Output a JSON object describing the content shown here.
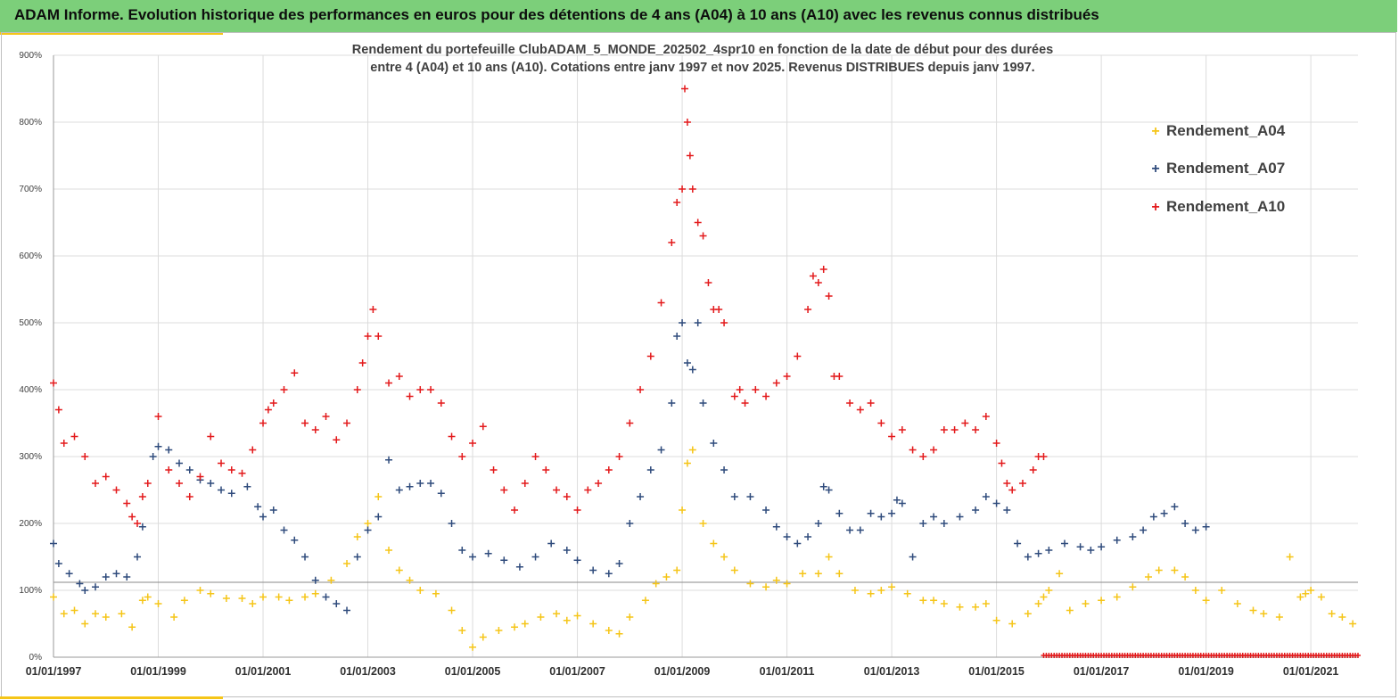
{
  "header": {
    "title": "ADAM Informe. Evolution historique des performances en euros pour des détentions de 4 ans (A04) à 10 ans (A10) avec les revenus connus distribués"
  },
  "chart_data": {
    "type": "scatter",
    "title_line1": "Rendement du portefeuille ClubADAM_5_MONDE_202502_4spr10  en fonction de la date de début pour des durées",
    "title_line2": "entre 4 (A04)  et 10 ans (A10). Cotations  entre janv 1997 et nov  2025. Revenus DISTRIBUES depuis janv 1997.",
    "xlabel": "",
    "ylabel": "",
    "xlim": [
      1997.0,
      2021.9
    ],
    "ylim": [
      0,
      900
    ],
    "yticks": [
      "0%",
      "100%",
      "200%",
      "300%",
      "400%",
      "500%",
      "600%",
      "700%",
      "800%",
      "900%"
    ],
    "xticks": [
      {
        "year": 1997,
        "label": "01/01/1997"
      },
      {
        "year": 1999,
        "label": "01/01/1999"
      },
      {
        "year": 2001,
        "label": "01/01/2001"
      },
      {
        "year": 2003,
        "label": "01/01/2003"
      },
      {
        "year": 2005,
        "label": "01/01/2005"
      },
      {
        "year": 2007,
        "label": "01/01/2007"
      },
      {
        "year": 2009,
        "label": "01/01/2009"
      },
      {
        "year": 2011,
        "label": "01/01/2011"
      },
      {
        "year": 2013,
        "label": "01/01/2013"
      },
      {
        "year": 2015,
        "label": "01/01/2015"
      },
      {
        "year": 2017,
        "label": "01/01/2017"
      },
      {
        "year": 2019,
        "label": "01/01/2019"
      },
      {
        "year": 2021,
        "label": "01/01/2021"
      }
    ],
    "reference_line": 112,
    "grid": true,
    "legend_position": "top-right",
    "series": [
      {
        "name": "Rendement_A04",
        "color": "#f5c518",
        "x": [
          1997.0,
          1997.2,
          1997.4,
          1997.6,
          1997.8,
          1998.0,
          1998.3,
          1998.5,
          1998.7,
          1998.8,
          1999.0,
          1999.3,
          1999.5,
          1999.8,
          2000.0,
          2000.3,
          2000.6,
          2000.8,
          2001.0,
          2001.3,
          2001.5,
          2001.8,
          2002.0,
          2002.3,
          2002.6,
          2002.8,
          2003.0,
          2003.2,
          2003.4,
          2003.6,
          2003.8,
          2004.0,
          2004.3,
          2004.6,
          2004.8,
          2005.0,
          2005.2,
          2005.5,
          2005.8,
          2006.0,
          2006.3,
          2006.6,
          2006.8,
          2007.0,
          2007.3,
          2007.6,
          2007.8,
          2008.0,
          2008.3,
          2008.5,
          2008.7,
          2008.9,
          2009.0,
          2009.1,
          2009.2,
          2009.4,
          2009.6,
          2009.8,
          2010.0,
          2010.3,
          2010.6,
          2010.8,
          2011.0,
          2011.3,
          2011.6,
          2011.8,
          2012.0,
          2012.3,
          2012.6,
          2012.8,
          2013.0,
          2013.3,
          2013.6,
          2013.8,
          2014.0,
          2014.3,
          2014.6,
          2014.8,
          2015.0,
          2015.3,
          2015.6,
          2015.8,
          2015.9,
          2016.0,
          2016.2,
          2016.4,
          2016.7,
          2017.0,
          2017.3,
          2017.6,
          2017.9,
          2018.1,
          2018.4,
          2018.6,
          2018.8,
          2019.0,
          2019.3,
          2019.6,
          2019.9,
          2020.1,
          2020.4,
          2020.6,
          2020.8,
          2020.9,
          2021.0,
          2021.2,
          2021.4,
          2021.6,
          2021.8
        ],
        "values": [
          90,
          65,
          70,
          50,
          65,
          60,
          65,
          45,
          85,
          90,
          80,
          60,
          85,
          100,
          95,
          88,
          88,
          80,
          90,
          90,
          85,
          90,
          95,
          115,
          140,
          180,
          200,
          240,
          160,
          130,
          115,
          100,
          95,
          70,
          40,
          15,
          30,
          40,
          45,
          50,
          60,
          65,
          55,
          62,
          50,
          40,
          35,
          60,
          85,
          110,
          120,
          130,
          220,
          290,
          310,
          200,
          170,
          150,
          130,
          110,
          105,
          115,
          110,
          125,
          125,
          150,
          125,
          100,
          95,
          100,
          105,
          95,
          85,
          85,
          80,
          75,
          75,
          80,
          55,
          50,
          65,
          80,
          90,
          100,
          125,
          70,
          80,
          85,
          90,
          105,
          120,
          130,
          130,
          120,
          100,
          85,
          100,
          80,
          70,
          65,
          60,
          150,
          90,
          95,
          100,
          90,
          65,
          60,
          50
        ]
      },
      {
        "name": "Rendement_A07",
        "color": "#2f4b7c",
        "x": [
          1997.0,
          1997.1,
          1997.3,
          1997.5,
          1997.6,
          1997.8,
          1998.0,
          1998.2,
          1998.4,
          1998.6,
          1998.7,
          1998.9,
          1999.0,
          1999.2,
          1999.4,
          1999.6,
          1999.8,
          2000.0,
          2000.2,
          2000.4,
          2000.7,
          2000.9,
          2001.0,
          2001.2,
          2001.4,
          2001.6,
          2001.8,
          2002.0,
          2002.2,
          2002.4,
          2002.6,
          2002.8,
          2003.0,
          2003.2,
          2003.4,
          2003.6,
          2003.8,
          2004.0,
          2004.2,
          2004.4,
          2004.6,
          2004.8,
          2005.0,
          2005.3,
          2005.6,
          2005.9,
          2006.2,
          2006.5,
          2006.8,
          2007.0,
          2007.3,
          2007.6,
          2007.8,
          2008.0,
          2008.2,
          2008.4,
          2008.6,
          2008.8,
          2008.9,
          2009.0,
          2009.1,
          2009.2,
          2009.3,
          2009.4,
          2009.6,
          2009.8,
          2010.0,
          2010.3,
          2010.6,
          2010.8,
          2011.0,
          2011.2,
          2011.4,
          2011.6,
          2011.7,
          2011.8,
          2012.0,
          2012.2,
          2012.4,
          2012.6,
          2012.8,
          2013.0,
          2013.1,
          2013.2,
          2013.4,
          2013.6,
          2013.8,
          2014.0,
          2014.3,
          2014.6,
          2014.8,
          2015.0,
          2015.2,
          2015.4,
          2015.6,
          2015.8,
          2016.0,
          2016.3,
          2016.6,
          2016.8,
          2017.0,
          2017.3,
          2017.6,
          2017.8,
          2018.0,
          2018.2,
          2018.4,
          2018.6,
          2018.8,
          2019.0
        ],
        "values": [
          170,
          140,
          125,
          110,
          100,
          105,
          120,
          125,
          120,
          150,
          195,
          300,
          315,
          310,
          290,
          280,
          265,
          260,
          250,
          245,
          255,
          225,
          210,
          220,
          190,
          175,
          150,
          115,
          90,
          80,
          70,
          150,
          190,
          210,
          295,
          250,
          255,
          260,
          260,
          245,
          200,
          160,
          150,
          155,
          145,
          135,
          150,
          170,
          160,
          145,
          130,
          125,
          140,
          200,
          240,
          280,
          310,
          380,
          480,
          500,
          440,
          430,
          500,
          380,
          320,
          280,
          240,
          240,
          220,
          195,
          180,
          170,
          180,
          200,
          255,
          250,
          215,
          190,
          190,
          215,
          210,
          215,
          235,
          230,
          150,
          200,
          210,
          200,
          210,
          220,
          240,
          230,
          220,
          170,
          150,
          155,
          160,
          170,
          165,
          160,
          165,
          175,
          180,
          190,
          210,
          215,
          225,
          200,
          190,
          195
        ]
      },
      {
        "name": "Rendement_A10",
        "color": "#e31a1c",
        "x": [
          1997.0,
          1997.1,
          1997.2,
          1997.4,
          1997.6,
          1997.8,
          1998.0,
          1998.2,
          1998.4,
          1998.5,
          1998.6,
          1998.7,
          1998.8,
          1999.0,
          1999.2,
          1999.4,
          1999.6,
          1999.8,
          2000.0,
          2000.2,
          2000.4,
          2000.6,
          2000.8,
          2001.0,
          2001.1,
          2001.2,
          2001.4,
          2001.6,
          2001.8,
          2002.0,
          2002.2,
          2002.4,
          2002.6,
          2002.8,
          2002.9,
          2003.0,
          2003.1,
          2003.2,
          2003.4,
          2003.6,
          2003.8,
          2004.0,
          2004.2,
          2004.4,
          2004.6,
          2004.8,
          2005.0,
          2005.2,
          2005.4,
          2005.6,
          2005.8,
          2006.0,
          2006.2,
          2006.4,
          2006.6,
          2006.8,
          2007.0,
          2007.2,
          2007.4,
          2007.6,
          2007.8,
          2008.0,
          2008.2,
          2008.4,
          2008.6,
          2008.8,
          2008.9,
          2009.0,
          2009.05,
          2009.1,
          2009.15,
          2009.2,
          2009.3,
          2009.4,
          2009.5,
          2009.6,
          2009.7,
          2009.8,
          2010.0,
          2010.1,
          2010.2,
          2010.4,
          2010.6,
          2010.8,
          2011.0,
          2011.2,
          2011.4,
          2011.5,
          2011.6,
          2011.7,
          2011.8,
          2011.9,
          2012.0,
          2012.2,
          2012.4,
          2012.6,
          2012.8,
          2013.0,
          2013.2,
          2013.4,
          2013.6,
          2013.8,
          2014.0,
          2014.2,
          2014.4,
          2014.6,
          2014.8,
          2015.0,
          2015.1,
          2015.2,
          2015.3,
          2015.5,
          2015.7,
          2015.8,
          2015.9
        ],
        "values": [
          410,
          370,
          320,
          330,
          300,
          260,
          270,
          250,
          230,
          210,
          200,
          240,
          260,
          360,
          280,
          260,
          240,
          270,
          330,
          290,
          280,
          275,
          310,
          350,
          370,
          380,
          400,
          425,
          350,
          340,
          360,
          325,
          350,
          400,
          440,
          480,
          520,
          480,
          410,
          420,
          390,
          400,
          400,
          380,
          330,
          300,
          320,
          345,
          280,
          250,
          220,
          260,
          300,
          280,
          250,
          240,
          220,
          250,
          260,
          280,
          300,
          350,
          400,
          450,
          530,
          620,
          680,
          700,
          850,
          800,
          750,
          700,
          650,
          630,
          560,
          520,
          520,
          500,
          390,
          400,
          380,
          400,
          390,
          410,
          420,
          450,
          520,
          570,
          560,
          580,
          540,
          420,
          420,
          380,
          370,
          380,
          350,
          330,
          340,
          310,
          300,
          310,
          340,
          340,
          350,
          340,
          360,
          320,
          290,
          260,
          250,
          260,
          280,
          300,
          300
        ]
      }
    ]
  }
}
